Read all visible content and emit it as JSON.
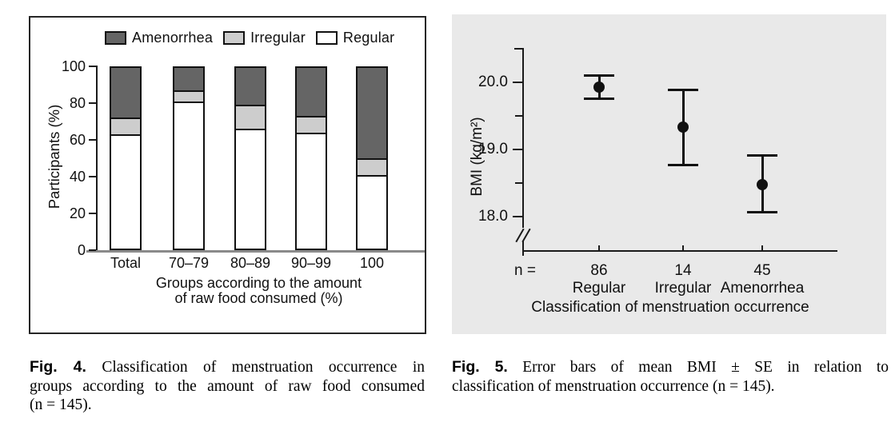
{
  "chart_data": [
    {
      "id": "fig4",
      "type": "bar",
      "stacked": true,
      "categories": [
        "Total",
        "70–79",
        "80–89",
        "90–99",
        "100"
      ],
      "series": [
        {
          "name": "Regular",
          "color": "#ffffff",
          "values": [
            63,
            81,
            66,
            64,
            41
          ]
        },
        {
          "name": "Irregular",
          "color": "#cdcdcd",
          "values": [
            9,
            6,
            13,
            9,
            9
          ]
        },
        {
          "name": "Amenorrhea",
          "color": "#656565",
          "values": [
            28,
            13,
            21,
            27,
            50
          ]
        }
      ],
      "xlabel": "Groups according to the amount of raw food consumed (%)",
      "xlabel_lines": [
        "Groups according to the amount",
        "of raw food consumed (%)"
      ],
      "ylabel": "Participants (%)",
      "ylim": [
        0,
        100
      ],
      "yticks": [
        0,
        20,
        40,
        60,
        80,
        100
      ],
      "grid": false,
      "legend": {
        "position": "top",
        "order": [
          "Amenorrhea",
          "Irregular",
          "Regular"
        ]
      }
    },
    {
      "id": "fig5",
      "type": "scatter",
      "subtype": "mean-error-bars",
      "categories": [
        "Regular",
        "Irregular",
        "Amenorrhea"
      ],
      "n_prefix": "n =",
      "n": [
        86,
        14,
        45
      ],
      "means": [
        19.93,
        19.33,
        18.48
      ],
      "upper": [
        20.1,
        19.89,
        18.91
      ],
      "lower": [
        19.76,
        18.77,
        18.07
      ],
      "xlabel": "Classification of menstruation occurrence",
      "ylabel": "BMI (kg/m²)",
      "yticks": [
        20.0,
        19.0,
        18.0
      ],
      "ytick_labels": [
        "20.0",
        "19.0",
        "18.0"
      ],
      "minor_ticks": [
        20.5,
        19.5,
        18.5
      ],
      "ylim": [
        17.6,
        20.5
      ],
      "axis_break": true,
      "grid": false,
      "background": "#e9e9e9",
      "marker_color": "#111111"
    }
  ],
  "captions": {
    "fig4": {
      "label": "Fig. 4.",
      "line1": "Classification of menstruation occurrence in",
      "line2": "groups according to the amount of raw food consumed",
      "line3": "(n = 145).",
      "full": "Fig. 4. Classification of menstruation occurrence in groups according to the amount of raw food consumed (n = 145)."
    },
    "fig5": {
      "label": "Fig. 5.",
      "line1": "Error bars of mean BMI ± SE in relation to",
      "line2": "classification of menstruation occurrence (n = 145).",
      "full": "Fig. 5. Error bars of mean BMI ± SE in relation to classification of menstruation occurrence (n = 145)."
    }
  },
  "colors": {
    "amenorrhea_fill": "#656565",
    "irregular_fill": "#cdcdcd",
    "regular_fill": "#ffffff",
    "fig5_panel_bg": "#e9e9e9",
    "axis_line": "#1a1a1a",
    "fig4_baseline_gray": "#8a8a8a"
  }
}
